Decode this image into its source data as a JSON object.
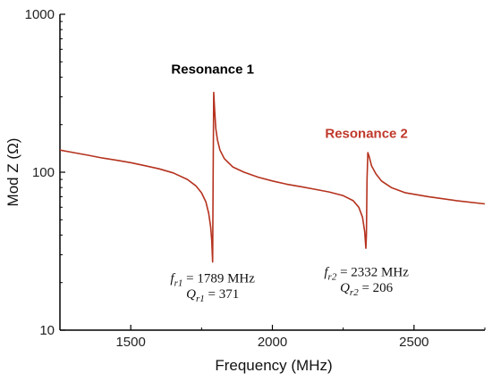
{
  "chart_data": {
    "type": "line",
    "xlabel": "Frequency (MHz)",
    "ylabel": "Mod Z (Ω)",
    "xlim": [
      1250,
      2750
    ],
    "ylim": [
      10,
      1000
    ],
    "yscale": "log",
    "grid": false,
    "x_ticks": [
      1500,
      2000,
      2500
    ],
    "y_ticks": [
      10,
      100,
      1000
    ],
    "x_tick_labels": [
      "1500",
      "2000",
      "2500"
    ],
    "y_tick_labels": [
      "10",
      "100",
      "1000"
    ],
    "colors": {
      "line": "#b5321e",
      "resonance2": "#c0392b",
      "axes": "#000000"
    },
    "series": [
      {
        "x": [
          1250,
          1300,
          1350,
          1400,
          1450,
          1500,
          1550,
          1600,
          1650,
          1700,
          1730,
          1750,
          1765,
          1775,
          1782,
          1786,
          1789,
          1791,
          1793,
          1796,
          1800,
          1806,
          1815,
          1830,
          1860,
          1900,
          1950,
          2000,
          2050,
          2100,
          2150,
          2200,
          2250,
          2285,
          2305,
          2318,
          2326,
          2330,
          2332,
          2334,
          2337,
          2342,
          2350,
          2365,
          2385,
          2420,
          2470,
          2550,
          2650,
          2750
        ],
        "y": [
          138,
          133,
          128,
          123,
          119,
          115,
          110,
          105,
          99,
          90,
          82,
          74,
          65,
          55,
          45,
          37,
          27,
          100,
          320,
          250,
          190,
          160,
          138,
          122,
          108,
          100,
          93,
          88,
          84,
          81,
          78,
          75,
          71,
          66,
          60,
          52,
          42,
          33,
          40,
          90,
          133,
          125,
          110,
          98,
          88,
          80,
          74,
          70,
          66,
          63
        ]
      }
    ],
    "annotations": [
      {
        "text": "Resonance 1",
        "x": 1789,
        "y": 420,
        "color": "#000000"
      },
      {
        "text": "Resonance 2",
        "x": 2332,
        "y": 165,
        "color": "#c0392b"
      },
      {
        "var": "f",
        "sub": "r1",
        "eq": "= 1789 MHz",
        "x": 1789,
        "y": 20
      },
      {
        "var": "Q",
        "sub": "r1",
        "eq": "= 371",
        "x": 1789,
        "y": 16
      },
      {
        "var": "f",
        "sub": "r2",
        "eq": "= 2332 MHz",
        "x": 2332,
        "y": 22
      },
      {
        "var": "Q",
        "sub": "r2",
        "eq": "= 206",
        "x": 2332,
        "y": 17.5
      }
    ]
  }
}
